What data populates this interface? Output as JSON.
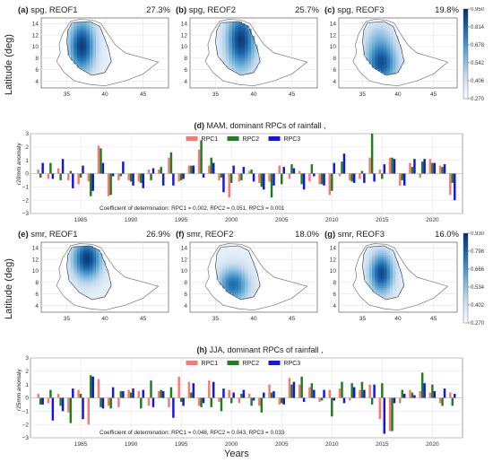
{
  "chart_data": [
    {
      "type": "heatmap",
      "panel": "a",
      "title": "spg, REOF1",
      "variance": "27.3%",
      "ylabel": "Latitude (deg)",
      "yticks": [
        "14",
        "12",
        "10",
        "8",
        "6",
        "4"
      ],
      "xticks": [
        "35",
        "40",
        "45"
      ],
      "pattern": "west"
    },
    {
      "type": "heatmap",
      "panel": "b",
      "title": "spg, REOF2",
      "variance": "25.7%",
      "yticks": [
        "14",
        "12",
        "10",
        "8",
        "6",
        "4"
      ],
      "xticks": [
        "35",
        "40",
        "45"
      ],
      "pattern": "east"
    },
    {
      "type": "heatmap",
      "panel": "c",
      "title": "spg, REOF3",
      "variance": "19.8%",
      "yticks": [
        "14",
        "12",
        "10",
        "8",
        "6",
        "4"
      ],
      "xticks": [
        "35",
        "40",
        "45"
      ],
      "pattern": "south",
      "colorbar": [
        "0.950",
        "0.814",
        "0.678",
        "0.542",
        "0.406",
        "0.270"
      ]
    },
    {
      "type": "bar",
      "panel": "d",
      "title": "MAM, dominant RPCs of rainfall ,",
      "ylabel": "r20mm anomaly",
      "ylim": [
        -3,
        3
      ],
      "yticks": [
        "3",
        "2",
        "1",
        "0",
        "−1",
        "−2",
        "−3"
      ],
      "x": [
        1981,
        1982,
        1983,
        1984,
        1985,
        1986,
        1987,
        1988,
        1989,
        1990,
        1991,
        1992,
        1993,
        1994,
        1995,
        1996,
        1997,
        1998,
        1999,
        2000,
        2001,
        2002,
        2003,
        2004,
        2005,
        2006,
        2007,
        2008,
        2009,
        2010,
        2011,
        2012,
        2013,
        2014,
        2015,
        2016,
        2017,
        2018,
        2019,
        2020,
        2021,
        2022
      ],
      "xticks": [
        "1985",
        "1990",
        "1995",
        "2000",
        "2005",
        "2010",
        "2015",
        "2020"
      ],
      "series": [
        {
          "name": "RPC1",
          "color": "#f87878",
          "values": [
            0.3,
            -0.4,
            0.4,
            -0.5,
            -0.8,
            -0.6,
            2.1,
            -1.7,
            -0.5,
            -0.5,
            -0.6,
            0.3,
            0.3,
            1.2,
            -0.6,
            0.6,
            1.8,
            0.6,
            -0.5,
            -1.8,
            -0.6,
            0.2,
            -0.7,
            -0.6,
            0.6,
            -0.4,
            0.2,
            -0.6,
            -0.8,
            -1.6,
            -0.2,
            -0.5,
            -0.4,
            1.2,
            0.3,
            1.2,
            -0.9,
            0.8,
            -0.3,
            1.1,
            0.6,
            -1.6
          ]
        },
        {
          "name": "RPC2",
          "color": "#1e7f1e",
          "values": [
            -0.3,
            0.8,
            -0.5,
            0.2,
            -0.3,
            -1.7,
            1.9,
            -1.6,
            -0.2,
            -0.6,
            -0.7,
            -0.5,
            0.5,
            1.6,
            -0.5,
            0.6,
            2.5,
            1.2,
            -0.3,
            -0.7,
            -0.5,
            0.3,
            -1.0,
            -1.8,
            -0.8,
            0.7,
            -0.8,
            0.7,
            -0.8,
            -1.3,
            0.9,
            -0.6,
            0.2,
            3.0,
            -0.4,
            1.2,
            -0.5,
            0.5,
            0.9,
            0.8,
            0.5,
            -0.7
          ]
        },
        {
          "name": "RPC3",
          "color": "#1515e0",
          "values": [
            0.8,
            -0.4,
            1.1,
            -1.1,
            0.6,
            -1.3,
            0.8,
            -0.2,
            0.9,
            -0.9,
            -1.1,
            0.4,
            -0.9,
            -0.9,
            -0.4,
            0.6,
            -0.3,
            0.8,
            -1.4,
            0.6,
            0.5,
            -0.6,
            -1.2,
            -0.9,
            0.5,
            0.4,
            -1.2,
            -0.2,
            -0.9,
            0.8,
            1.5,
            -0.7,
            -0.7,
            -0.6,
            0.7,
            1.1,
            -0.9,
            1.1,
            1.1,
            0.8,
            0.7,
            -2.0
          ]
        }
      ],
      "legend": "top-center",
      "annotation": "Coefficient of determination: RPC1 = 0.002,  RPC2 = 0.051,  RPC3 = 0.001"
    },
    {
      "type": "heatmap",
      "panel": "e",
      "title": "smr, REOF1",
      "variance": "26.9%",
      "ylabel": "Latitude (deg)",
      "yticks": [
        "14",
        "12",
        "10",
        "8",
        "6",
        "4"
      ],
      "xticks": [
        "35",
        "40",
        "45"
      ],
      "pattern": "north"
    },
    {
      "type": "heatmap",
      "panel": "f",
      "title": "smr, REOF2",
      "variance": "18.0%",
      "yticks": [
        "14",
        "12",
        "10",
        "8",
        "6",
        "4"
      ],
      "xticks": [
        "35",
        "40",
        "45"
      ],
      "pattern": "southwest"
    },
    {
      "type": "heatmap",
      "panel": "g",
      "title": "smr, REOF3",
      "variance": "16.0%",
      "yticks": [
        "14",
        "12",
        "10",
        "8",
        "6",
        "4"
      ],
      "xticks": [
        "35",
        "40",
        "45"
      ],
      "pattern": "central",
      "colorbar": [
        "0.930",
        "0.798",
        "0.666",
        "0.534",
        "0.402",
        "0.270"
      ]
    },
    {
      "type": "bar",
      "panel": "h",
      "title": "JJA, dominant RPCs of rainfall ,",
      "ylabel": "r25mm anomaly",
      "xlabel": "Years",
      "ylim": [
        -3,
        3
      ],
      "yticks": [
        "3",
        "2",
        "1",
        "0",
        "−1",
        "−2",
        "−3"
      ],
      "x": [
        1981,
        1982,
        1983,
        1984,
        1985,
        1986,
        1987,
        1988,
        1989,
        1990,
        1991,
        1992,
        1993,
        1994,
        1995,
        1996,
        1997,
        1998,
        1999,
        2000,
        2001,
        2002,
        2003,
        2004,
        2005,
        2006,
        2007,
        2008,
        2009,
        2010,
        2011,
        2012,
        2013,
        2014,
        2015,
        2016,
        2017,
        2018,
        2019,
        2020,
        2021,
        2022
      ],
      "xticks": [
        "1985",
        "1990",
        "1995",
        "2000",
        "2005",
        "2010",
        "2015",
        "2020"
      ],
      "series": [
        {
          "name": "RPC1",
          "color": "#f87878",
          "values": [
            0.3,
            -0.4,
            0.3,
            -1.1,
            0.6,
            -2.0,
            1.4,
            -0.6,
            -0.7,
            0.6,
            0.5,
            -0.6,
            0.5,
            -0.7,
            1.6,
            1.2,
            -0.6,
            1.3,
            -0.3,
            0.6,
            -0.4,
            0.3,
            -0.6,
            1.0,
            -0.5,
            1.5,
            1.0,
            0.8,
            -0.3,
            0.6,
            0.7,
            -0.2,
            0.6,
            1.0,
            -1.6,
            -2.5,
            -0.4,
            0.6,
            0.5,
            0.4,
            -0.4,
            0.4
          ]
        },
        {
          "name": "RPC2",
          "color": "#1e7f1e",
          "values": [
            -0.5,
            0.6,
            -0.6,
            -1.9,
            0.3,
            1.7,
            -0.7,
            -0.8,
            0.5,
            0.4,
            -0.8,
            1.3,
            0.6,
            0.8,
            -0.3,
            0.4,
            -0.7,
            -0.7,
            -1.0,
            -0.4,
            0.3,
            -0.6,
            -1.1,
            0.4,
            -0.4,
            1.0,
            1.6,
            1.1,
            -0.2,
            -1.4,
            1.2,
            1.1,
            1.2,
            -0.5,
            1.1,
            -2.5,
            0.6,
            0.4,
            1.9,
            1.0,
            -0.6,
            -0.6
          ]
        },
        {
          "name": "RPC3",
          "color": "#1515e0",
          "values": [
            -0.5,
            -1.7,
            -1.0,
            0.7,
            -1.6,
            1.6,
            -0.8,
            0.8,
            0.5,
            0.7,
            0.6,
            -0.7,
            0.5,
            -1.5,
            -0.6,
            1.1,
            -0.4,
            1.2,
            0.7,
            0.4,
            0.6,
            -0.2,
            0.4,
            0.5,
            -0.5,
            1.2,
            -0.3,
            0.6,
            0.6,
            -0.2,
            -0.4,
            0.8,
            0.6,
            1.0,
            -2.7,
            -0.4,
            0.3,
            0.2,
            1.1,
            0.5,
            0.7,
            0.3
          ]
        }
      ],
      "legend": "top-center",
      "annotation": "Coefficient of determination: RPC1 = 0.048,  RPC2 = 0.043,  RPC3 = 0.033"
    }
  ]
}
